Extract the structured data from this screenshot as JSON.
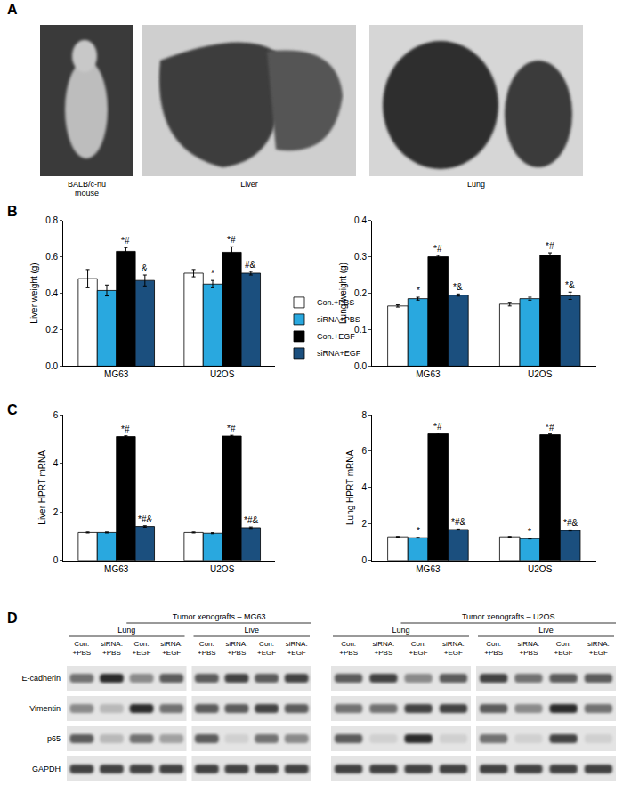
{
  "panel_labels": [
    "A",
    "B",
    "C",
    "D"
  ],
  "photos": [
    {
      "caption": [
        "BALB/c-nu",
        "mouse"
      ]
    },
    {
      "caption": [
        "Liver"
      ]
    },
    {
      "caption": [
        "Lung"
      ]
    }
  ],
  "chart_data": [
    {
      "type": "bar",
      "ylabel": "Liver weight (g)",
      "categories": [
        "MG63",
        "U2OS"
      ],
      "ylim": [
        0,
        0.8
      ],
      "yticks": [
        {
          "value": 0,
          "label": "0.0"
        },
        {
          "value": 0.2,
          "label": "0.2"
        },
        {
          "value": 0.4,
          "label": "0.4"
        },
        {
          "value": 0.6,
          "label": "0.6"
        },
        {
          "value": 0.8,
          "label": "0.8"
        }
      ],
      "grid": false,
      "legend": "right",
      "series": [
        {
          "name": "Con.+PBS",
          "color": "#ffffff",
          "values": [
            0.48,
            0.51
          ],
          "errors": [
            0.05,
            0.02
          ],
          "significance": [
            null,
            null
          ]
        },
        {
          "name": "siRNA+PBS",
          "color": "#29a8df",
          "values": [
            0.415,
            0.45
          ],
          "errors": [
            0.03,
            0.02
          ],
          "significance": [
            null,
            "*"
          ]
        },
        {
          "name": "Con.+EGF",
          "color": "#000000",
          "values": [
            0.63,
            0.625
          ],
          "errors": [
            0.02,
            0.03
          ],
          "significance": [
            "*#",
            "*#"
          ]
        },
        {
          "name": "siRNA+EGF",
          "color": "#1b4f7e",
          "values": [
            0.47,
            0.51
          ],
          "errors": [
            0.03,
            0.01
          ],
          "significance": [
            "&",
            "#&"
          ]
        }
      ]
    },
    {
      "type": "bar",
      "ylabel": "Lung weight (g)",
      "categories": [
        "MG63",
        "U2OS"
      ],
      "ylim": [
        0,
        0.4
      ],
      "yticks": [
        {
          "value": 0,
          "label": "0.0"
        },
        0.1,
        0.2,
        0.3,
        0.4
      ],
      "grid": false,
      "series": [
        {
          "name": "Con.+PBS",
          "color": "#ffffff",
          "values": [
            0.165,
            0.17
          ],
          "errors": [
            0.003,
            0.005
          ],
          "significance": [
            null,
            null
          ]
        },
        {
          "name": "siRNA+PBS",
          "color": "#29a8df",
          "values": [
            0.185,
            0.185
          ],
          "errors": [
            0.004,
            0.004
          ],
          "significance": [
            "*",
            null
          ]
        },
        {
          "name": "Con.+EGF",
          "color": "#000000",
          "values": [
            0.3,
            0.305
          ],
          "errors": [
            0.004,
            0.006
          ],
          "significance": [
            "*#",
            "*#"
          ]
        },
        {
          "name": "siRNA+EGF",
          "color": "#1b4f7e",
          "values": [
            0.195,
            0.193
          ],
          "errors": [
            0.003,
            0.01
          ],
          "significance": [
            "*&",
            "*&"
          ]
        }
      ]
    },
    {
      "type": "bar",
      "ylabel": "Liver HPRT mRNA",
      "categories": [
        "MG63",
        "U2OS"
      ],
      "ylim": [
        0,
        6
      ],
      "yticks": [
        0,
        2,
        4,
        6
      ],
      "grid": false,
      "series": [
        {
          "name": "Con.+PBS",
          "color": "#ffffff",
          "values": [
            1.15,
            1.15
          ],
          "errors": [
            0.02,
            0.02
          ],
          "significance": [
            null,
            null
          ]
        },
        {
          "name": "siRNA+PBS",
          "color": "#29a8df",
          "values": [
            1.15,
            1.12
          ],
          "errors": [
            0.02,
            0.02
          ],
          "significance": [
            null,
            null
          ]
        },
        {
          "name": "Con.+EGF",
          "color": "#000000",
          "values": [
            5.1,
            5.12
          ],
          "errors": [
            0.03,
            0.03
          ],
          "significance": [
            "*#",
            "*#"
          ]
        },
        {
          "name": "siRNA+EGF",
          "color": "#1b4f7e",
          "values": [
            1.4,
            1.35
          ],
          "errors": [
            0.03,
            0.03
          ],
          "significance": [
            "*#&",
            "*#&"
          ]
        }
      ]
    },
    {
      "type": "bar",
      "ylabel": "Lung HPRT mRNA",
      "categories": [
        "MG63",
        "U2OS"
      ],
      "ylim": [
        0,
        8
      ],
      "yticks": [
        0,
        2,
        4,
        6,
        8
      ],
      "grid": false,
      "series": [
        {
          "name": "Con.+PBS",
          "color": "#ffffff",
          "values": [
            1.3,
            1.3
          ],
          "errors": [
            0.02,
            0.02
          ],
          "significance": [
            null,
            null
          ]
        },
        {
          "name": "siRNA+PBS",
          "color": "#29a8df",
          "values": [
            1.25,
            1.2
          ],
          "errors": [
            0.02,
            0.02
          ],
          "significance": [
            "*",
            "*"
          ]
        },
        {
          "name": "Con.+EGF",
          "color": "#000000",
          "values": [
            6.95,
            6.9
          ],
          "errors": [
            0.04,
            0.04
          ],
          "significance": [
            "*#",
            "*#"
          ]
        },
        {
          "name": "siRNA+EGF",
          "color": "#1b4f7e",
          "values": [
            1.7,
            1.65
          ],
          "errors": [
            0.03,
            0.03
          ],
          "significance": [
            "*#&",
            "*#&"
          ]
        }
      ]
    }
  ],
  "blots": {
    "row_labels": [
      "E-cadherin",
      "Vimentin",
      "p65",
      "GAPDH"
    ],
    "groups": [
      {
        "title": "Tumor xenografts – MG63",
        "panels": [
          {
            "tissue": "Lung",
            "lanes": [
              [
                "Con.",
                "+PBS"
              ],
              [
                "siRNA.",
                "+PBS"
              ],
              [
                "Con.",
                "+EGF"
              ],
              [
                "siRNA.",
                "+EGF"
              ]
            ],
            "bands": [
              [
                0.6,
                0.9,
                0.5,
                0.7
              ],
              [
                0.5,
                0.3,
                0.9,
                0.6
              ],
              [
                0.7,
                0.3,
                0.6,
                0.4
              ],
              [
                0.8,
                0.8,
                0.8,
                0.8
              ]
            ]
          },
          {
            "tissue": "Live",
            "lanes": [
              [
                "Con.",
                "+PBS"
              ],
              [
                "siRNA.",
                "+PBS"
              ],
              [
                "Con.",
                "+EGF"
              ],
              [
                "siRNA.",
                "+EGF"
              ]
            ],
            "bands": [
              [
                0.7,
                0.8,
                0.7,
                0.8
              ],
              [
                0.7,
                0.7,
                0.8,
                0.7
              ],
              [
                0.7,
                0.2,
                0.6,
                0.5
              ],
              [
                0.8,
                0.8,
                0.8,
                0.8
              ]
            ]
          }
        ]
      },
      {
        "title": "Tumor xenografts – U2OS",
        "panels": [
          {
            "tissue": "Lung",
            "lanes": [
              [
                "Con.",
                "+PBS"
              ],
              [
                "siRNA.",
                "+PBS"
              ],
              [
                "Con.",
                "+EGF"
              ],
              [
                "siRNA.",
                "+EGF"
              ]
            ],
            "bands": [
              [
                0.7,
                0.8,
                0.5,
                0.7
              ],
              [
                0.6,
                0.6,
                0.8,
                0.8
              ],
              [
                0.7,
                0.2,
                0.9,
                0.2
              ],
              [
                0.8,
                0.8,
                0.8,
                0.8
              ]
            ]
          },
          {
            "tissue": "Live",
            "lanes": [
              [
                "Con.",
                "+PBS"
              ],
              [
                "siRNA.",
                "+PBS"
              ],
              [
                "Con.",
                "+EGF"
              ],
              [
                "siRNA.",
                "+EGF"
              ]
            ],
            "bands": [
              [
                0.8,
                0.6,
                0.7,
                0.7
              ],
              [
                0.7,
                0.5,
                0.9,
                0.6
              ],
              [
                0.6,
                0.2,
                0.8,
                0.2
              ],
              [
                0.8,
                0.8,
                0.8,
                0.8
              ]
            ]
          }
        ]
      }
    ]
  }
}
